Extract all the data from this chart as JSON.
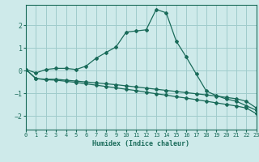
{
  "xlabel": "Humidex (Indice chaleur)",
  "background_color": "#ceeaea",
  "grid_color": "#a0cccc",
  "line_color": "#1a6b5a",
  "xlim": [
    0,
    23
  ],
  "ylim": [
    -2.6,
    2.9
  ],
  "yticks": [
    -2,
    -1,
    0,
    1,
    2
  ],
  "xticks": [
    0,
    1,
    2,
    3,
    4,
    5,
    6,
    7,
    8,
    9,
    10,
    11,
    12,
    13,
    14,
    15,
    16,
    17,
    18,
    19,
    20,
    21,
    22,
    23
  ],
  "series": [
    {
      "x": [
        0,
        1,
        2,
        3,
        4,
        5,
        6,
        7,
        8,
        9,
        10,
        11,
        12,
        13,
        14,
        15,
        16,
        17,
        18,
        19,
        20,
        21,
        22,
        23
      ],
      "y": [
        0.05,
        -0.1,
        0.05,
        0.1,
        0.1,
        0.05,
        0.2,
        0.55,
        0.8,
        1.05,
        1.7,
        1.75,
        1.8,
        2.7,
        2.55,
        1.3,
        0.6,
        -0.15,
        -0.9,
        -1.1,
        -1.25,
        -1.35,
        -1.55,
        -1.75
      ]
    },
    {
      "x": [
        0,
        1,
        2,
        3,
        4,
        5,
        6,
        7,
        8,
        9,
        10,
        11,
        12,
        13,
        14,
        15,
        16,
        17,
        18,
        19,
        20,
        21,
        22,
        23
      ],
      "y": [
        0.05,
        -0.35,
        -0.38,
        -0.38,
        -0.42,
        -0.46,
        -0.5,
        -0.54,
        -0.58,
        -0.62,
        -0.67,
        -0.72,
        -0.77,
        -0.82,
        -0.87,
        -0.92,
        -0.97,
        -1.02,
        -1.07,
        -1.12,
        -1.18,
        -1.24,
        -1.35,
        -1.65
      ]
    },
    {
      "x": [
        0,
        1,
        2,
        3,
        4,
        5,
        6,
        7,
        8,
        9,
        10,
        11,
        12,
        13,
        14,
        15,
        16,
        17,
        18,
        19,
        20,
        21,
        22,
        23
      ],
      "y": [
        0.05,
        -0.35,
        -0.4,
        -0.42,
        -0.47,
        -0.52,
        -0.58,
        -0.64,
        -0.7,
        -0.76,
        -0.82,
        -0.88,
        -0.95,
        -1.02,
        -1.08,
        -1.15,
        -1.21,
        -1.28,
        -1.35,
        -1.42,
        -1.49,
        -1.56,
        -1.65,
        -1.9
      ]
    }
  ]
}
